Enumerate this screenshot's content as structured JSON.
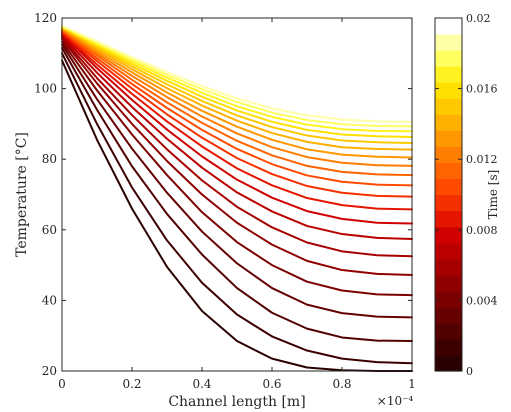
{
  "chart_data": {
    "type": "line",
    "xlabel": "Channel length [m]",
    "ylabel": "Temperature [°C]",
    "x_exponent_label": "×10⁻⁴",
    "xlim": [
      0,
      0.0001
    ],
    "ylim": [
      20,
      120
    ],
    "x_ticks": [
      {
        "value": 0,
        "label": "0"
      },
      {
        "value": 2e-05,
        "label": "0.2"
      },
      {
        "value": 4e-05,
        "label": "0.4"
      },
      {
        "value": 6e-05,
        "label": "0.6"
      },
      {
        "value": 8e-05,
        "label": "0.8"
      },
      {
        "value": 0.0001,
        "label": "1"
      }
    ],
    "y_ticks": [
      {
        "value": 20,
        "label": "20"
      },
      {
        "value": 40,
        "label": "40"
      },
      {
        "value": 60,
        "label": "60"
      },
      {
        "value": 80,
        "label": "80"
      },
      {
        "value": 100,
        "label": "100"
      },
      {
        "value": 120,
        "label": "120"
      }
    ],
    "grid": false,
    "x": [
      0,
      1e-05,
      2e-05,
      3e-05,
      4e-05,
      5e-05,
      6e-05,
      7e-05,
      8e-05,
      9e-05,
      0.0001
    ],
    "series": [
      {
        "time": 0.0,
        "color": "#2a0000",
        "values": [
          108.0,
          85.5,
          66.0,
          49.5,
          37.0,
          28.5,
          23.5,
          21.0,
          20.2,
          20.0,
          20.0
        ]
      },
      {
        "time": 0.001,
        "color": "#3d0000",
        "values": [
          110.0,
          90.0,
          72.0,
          57.0,
          45.0,
          36.0,
          29.8,
          25.8,
          23.5,
          22.5,
          22.2
        ]
      },
      {
        "time": 0.002,
        "color": "#520000",
        "values": [
          111.5,
          94.0,
          78.0,
          64.5,
          53.0,
          43.5,
          36.5,
          32.0,
          29.5,
          28.6,
          28.5
        ]
      },
      {
        "time": 0.003,
        "color": "#670000",
        "values": [
          112.5,
          97.0,
          83.0,
          70.5,
          59.5,
          50.5,
          43.5,
          38.8,
          36.4,
          35.4,
          35.2
        ]
      },
      {
        "time": 0.004,
        "color": "#7c0000",
        "values": [
          113.3,
          99.5,
          87.0,
          75.5,
          65.0,
          56.5,
          50.0,
          45.3,
          42.8,
          41.7,
          41.5
        ]
      },
      {
        "time": 0.005,
        "color": "#910000",
        "values": [
          114.0,
          101.5,
          90.0,
          79.5,
          70.0,
          62.0,
          55.8,
          51.2,
          48.6,
          47.5,
          47.2
        ]
      },
      {
        "time": 0.006,
        "color": "#a60000",
        "values": [
          114.5,
          103.0,
          92.5,
          82.8,
          74.0,
          66.5,
          60.7,
          56.4,
          53.9,
          52.8,
          52.5
        ]
      },
      {
        "time": 0.007,
        "color": "#bb0000",
        "values": [
          115.0,
          104.5,
          94.8,
          85.8,
          77.6,
          70.6,
          65.2,
          61.1,
          58.8,
          57.7,
          57.4
        ]
      },
      {
        "time": 0.008,
        "color": "#d00000",
        "values": [
          115.5,
          105.8,
          96.8,
          88.4,
          80.8,
          74.2,
          69.1,
          65.3,
          63.1,
          62.0,
          61.8
        ]
      },
      {
        "time": 0.009,
        "color": "#e51500",
        "values": [
          115.8,
          106.8,
          98.5,
          90.7,
          83.6,
          77.4,
          72.6,
          69.0,
          67.0,
          66.0,
          65.8
        ]
      },
      {
        "time": 0.01,
        "color": "#f53000",
        "values": [
          116.1,
          107.8,
          100.0,
          92.7,
          86.1,
          80.3,
          75.8,
          72.4,
          70.5,
          69.6,
          69.4
        ]
      },
      {
        "time": 0.011,
        "color": "#ff4a00",
        "values": [
          116.4,
          108.6,
          101.3,
          94.5,
          88.3,
          82.9,
          78.6,
          75.4,
          73.6,
          72.8,
          72.6
        ]
      },
      {
        "time": 0.012,
        "color": "#ff6400",
        "values": [
          116.6,
          109.4,
          102.5,
          96.1,
          90.3,
          85.2,
          81.1,
          78.1,
          76.4,
          75.7,
          75.5
        ]
      },
      {
        "time": 0.013,
        "color": "#ff7d00",
        "values": [
          116.8,
          110.0,
          103.6,
          97.6,
          92.1,
          87.3,
          83.4,
          80.6,
          79.0,
          78.3,
          78.1
        ]
      },
      {
        "time": 0.014,
        "color": "#ff9700",
        "values": [
          117.0,
          110.6,
          104.6,
          98.9,
          93.7,
          89.2,
          85.5,
          82.8,
          81.3,
          80.7,
          80.5
        ]
      },
      {
        "time": 0.015,
        "color": "#ffb000",
        "values": [
          117.2,
          111.2,
          105.5,
          100.1,
          95.2,
          90.9,
          87.4,
          84.9,
          83.4,
          82.9,
          82.7
        ]
      },
      {
        "time": 0.016,
        "color": "#ffc900",
        "values": [
          117.4,
          111.7,
          106.3,
          101.2,
          96.5,
          92.4,
          89.1,
          86.7,
          85.3,
          84.8,
          84.6
        ]
      },
      {
        "time": 0.017,
        "color": "#ffe000",
        "values": [
          117.5,
          112.2,
          107.0,
          102.2,
          97.7,
          93.8,
          90.6,
          88.3,
          87.0,
          86.5,
          86.3
        ]
      },
      {
        "time": 0.018,
        "color": "#fff220",
        "values": [
          117.6,
          112.6,
          107.7,
          103.1,
          98.8,
          95.0,
          92.0,
          89.8,
          88.5,
          88.0,
          87.9
        ]
      },
      {
        "time": 0.019,
        "color": "#ffff60",
        "values": [
          117.7,
          113.0,
          108.3,
          103.9,
          99.8,
          96.2,
          93.2,
          91.1,
          89.9,
          89.4,
          89.3
        ]
      },
      {
        "time": 0.02,
        "color": "#ffffa8",
        "values": [
          117.8,
          113.4,
          108.9,
          104.7,
          100.7,
          97.2,
          94.4,
          92.4,
          91.2,
          90.7,
          90.6
        ]
      }
    ],
    "colorbar": {
      "label": "Time [s]",
      "range": [
        0,
        0.02
      ],
      "ticks": [
        {
          "value": 0,
          "label": "0"
        },
        {
          "value": 0.004,
          "label": "0.004"
        },
        {
          "value": 0.008,
          "label": "0.008"
        },
        {
          "value": 0.012,
          "label": "0.012"
        },
        {
          "value": 0.016,
          "label": "0.016"
        },
        {
          "value": 0.02,
          "label": "0.02"
        }
      ],
      "colors": [
        "#2a0000",
        "#3d0000",
        "#520000",
        "#670000",
        "#7c0000",
        "#910000",
        "#a60000",
        "#bb0000",
        "#d00000",
        "#e51500",
        "#f53000",
        "#ff4a00",
        "#ff6400",
        "#ff7d00",
        "#ff9700",
        "#ffb000",
        "#ffc900",
        "#ffe000",
        "#fff220",
        "#ffff60",
        "#ffffa8",
        "#ffffff"
      ]
    }
  }
}
